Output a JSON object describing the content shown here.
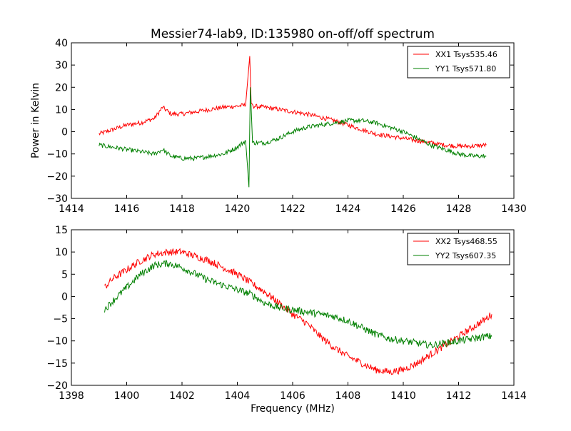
{
  "figure": {
    "title": "Messier74-lab9, ID:135980 on-off/off spectrum",
    "xlabel": "Frequency (MHz)",
    "ylabel": "Power in Kelvin"
  },
  "chart_data": [
    {
      "type": "line",
      "title": "Messier74-lab9, ID:135980 on-off/off spectrum",
      "xlabel": "",
      "ylabel": "Power in Kelvin",
      "xlim": [
        1414,
        1430
      ],
      "ylim": [
        -30,
        40
      ],
      "xticks": [
        1414,
        1416,
        1418,
        1420,
        1422,
        1424,
        1426,
        1428,
        1430
      ],
      "yticks": [
        -30,
        -20,
        -10,
        0,
        10,
        20,
        30,
        40
      ],
      "legend": "top-right",
      "grid": false,
      "series": [
        {
          "name": "XX1 Tsys535.46",
          "color": "#ff0000",
          "x": [
            1415.0,
            1415.5,
            1416.0,
            1416.5,
            1417.0,
            1417.3,
            1417.6,
            1418.0,
            1418.5,
            1419.0,
            1419.5,
            1420.0,
            1420.3,
            1420.45,
            1420.5,
            1420.6,
            1421.0,
            1421.5,
            1422.0,
            1422.5,
            1423.0,
            1423.5,
            1424.0,
            1424.5,
            1425.0,
            1425.5,
            1426.0,
            1426.5,
            1427.0,
            1427.5,
            1428.0,
            1428.5,
            1429.0
          ],
          "y": [
            -1.0,
            1.0,
            3.0,
            4.0,
            6.0,
            11.0,
            8.0,
            8.0,
            9.0,
            10.0,
            11.0,
            11.5,
            12.0,
            34.0,
            13.0,
            11.5,
            11.0,
            10.0,
            9.0,
            8.0,
            6.5,
            5.0,
            3.0,
            1.0,
            -1.0,
            -2.0,
            -3.0,
            -4.0,
            -5.0,
            -6.0,
            -6.5,
            -6.5,
            -6.0
          ],
          "noise": 1.0
        },
        {
          "name": "YY1 Tsys571.80",
          "color": "#008000",
          "x": [
            1415.0,
            1415.5,
            1416.0,
            1416.5,
            1417.0,
            1417.3,
            1417.6,
            1418.0,
            1418.5,
            1419.0,
            1419.5,
            1420.0,
            1420.3,
            1420.42,
            1420.47,
            1420.55,
            1421.0,
            1421.5,
            1422.0,
            1422.5,
            1423.0,
            1423.5,
            1424.0,
            1424.5,
            1425.0,
            1425.5,
            1426.0,
            1426.5,
            1427.0,
            1427.5,
            1428.0,
            1428.5,
            1429.0
          ],
          "y": [
            -6.0,
            -7.0,
            -8.0,
            -9.0,
            -10.0,
            -8.0,
            -11.0,
            -12.0,
            -12.0,
            -11.0,
            -10.0,
            -7.0,
            -4.0,
            -25.0,
            20.0,
            -5.0,
            -5.0,
            -3.0,
            0.0,
            2.0,
            3.0,
            4.0,
            5.0,
            5.0,
            4.0,
            2.0,
            0.0,
            -3.0,
            -6.0,
            -8.0,
            -10.0,
            -11.0,
            -11.0
          ],
          "noise": 1.0
        }
      ]
    },
    {
      "type": "line",
      "title": "",
      "xlabel": "Frequency (MHz)",
      "ylabel": "",
      "xlim": [
        1398,
        1414
      ],
      "ylim": [
        -20,
        15
      ],
      "xticks": [
        1398,
        1400,
        1402,
        1404,
        1406,
        1408,
        1410,
        1412,
        1414
      ],
      "yticks": [
        -20,
        -15,
        -10,
        -5,
        0,
        5,
        10,
        15
      ],
      "legend": "top-right",
      "grid": false,
      "series": [
        {
          "name": "XX2 Tsys468.55",
          "color": "#ff0000",
          "x": [
            1399.2,
            1399.5,
            1400.0,
            1400.5,
            1401.0,
            1401.5,
            1402.0,
            1402.5,
            1403.0,
            1403.5,
            1404.0,
            1404.5,
            1405.0,
            1405.5,
            1406.0,
            1406.5,
            1407.0,
            1407.5,
            1408.0,
            1408.5,
            1409.0,
            1409.5,
            1410.0,
            1410.5,
            1411.0,
            1411.5,
            1412.0,
            1412.5,
            1413.0,
            1413.2
          ],
          "y": [
            2.0,
            4.0,
            6.0,
            8.0,
            9.5,
            10.0,
            10.0,
            9.0,
            8.0,
            6.5,
            5.0,
            3.0,
            1.0,
            -1.5,
            -4.0,
            -6.0,
            -9.0,
            -11.5,
            -13.5,
            -15.0,
            -16.5,
            -17.0,
            -16.5,
            -15.0,
            -13.0,
            -11.0,
            -9.0,
            -7.0,
            -5.0,
            -4.0
          ],
          "noise": 0.8
        },
        {
          "name": "YY2 Tsys607.35",
          "color": "#008000",
          "x": [
            1399.2,
            1399.5,
            1400.0,
            1400.5,
            1401.0,
            1401.5,
            1402.0,
            1402.5,
            1403.0,
            1403.5,
            1404.0,
            1404.5,
            1405.0,
            1405.5,
            1406.0,
            1406.5,
            1407.0,
            1407.5,
            1408.0,
            1408.5,
            1409.0,
            1409.5,
            1410.0,
            1410.5,
            1411.0,
            1411.5,
            1412.0,
            1412.5,
            1413.0,
            1413.2
          ],
          "y": [
            -3.0,
            -1.0,
            2.0,
            5.0,
            7.0,
            7.5,
            6.5,
            5.0,
            3.5,
            2.5,
            1.5,
            0.5,
            -1.5,
            -2.5,
            -3.0,
            -3.5,
            -4.0,
            -4.5,
            -5.5,
            -7.0,
            -8.5,
            -9.5,
            -10.0,
            -10.5,
            -11.0,
            -10.5,
            -10.0,
            -9.5,
            -9.0,
            -9.0
          ],
          "noise": 0.8
        }
      ]
    }
  ]
}
